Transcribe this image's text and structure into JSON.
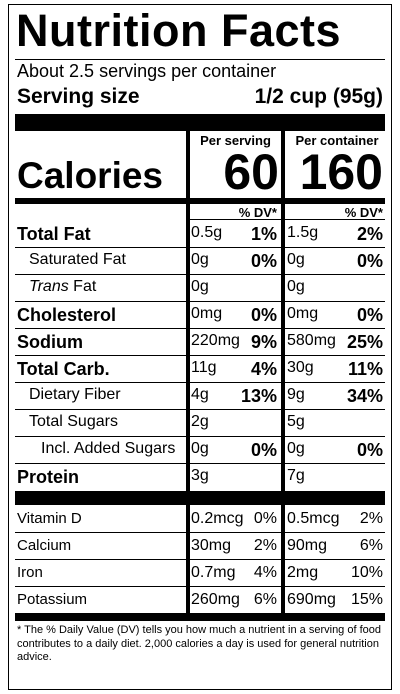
{
  "title": "Nutrition Facts",
  "servings": "About 2.5 servings per container",
  "serving_size_label": "Serving size",
  "serving_size": "1/2 cup (95g)",
  "columns": [
    "Per serving",
    "Per container"
  ],
  "calories_label": "Calories",
  "calories": [
    "60",
    "160"
  ],
  "dv_header": "% DV*",
  "nutrients": [
    {
      "name": "Total Fat",
      "bold": true,
      "indent": 0,
      "serving": [
        "0.5g",
        "1%"
      ],
      "container": [
        "1.5g",
        "2%"
      ]
    },
    {
      "name": "Saturated Fat",
      "bold": false,
      "indent": 1,
      "serving": [
        "0g",
        "0%"
      ],
      "container": [
        "0g",
        "0%"
      ]
    },
    {
      "name_italic": "Trans",
      "name": "Fat",
      "bold": false,
      "indent": 1,
      "serving": [
        "0g"
      ],
      "container": [
        "0g"
      ]
    },
    {
      "name": "Cholesterol",
      "bold": true,
      "indent": 0,
      "serving": [
        "0mg",
        "0%"
      ],
      "container": [
        "0mg",
        "0%"
      ]
    },
    {
      "name": "Sodium",
      "bold": true,
      "indent": 0,
      "serving": [
        "220mg",
        "9%"
      ],
      "container": [
        "580mg",
        "25%"
      ]
    },
    {
      "name": "Total Carb.",
      "bold": true,
      "indent": 0,
      "serving": [
        "11g",
        "4%"
      ],
      "container": [
        "30g",
        "11%"
      ]
    },
    {
      "name": "Dietary Fiber",
      "bold": false,
      "indent": 1,
      "serving": [
        "4g",
        "13%"
      ],
      "container": [
        "9g",
        "34%"
      ]
    },
    {
      "name": "Total Sugars",
      "bold": false,
      "indent": 1,
      "serving": [
        "2g"
      ],
      "container": [
        "5g"
      ]
    },
    {
      "name": "Incl. Added Sugars",
      "bold": false,
      "indent": 2,
      "serving": [
        "0g",
        "0%"
      ],
      "container": [
        "0g",
        "0%"
      ]
    },
    {
      "name": "Protein",
      "bold": true,
      "indent": 0,
      "serving": [
        "3g"
      ],
      "container": [
        "7g"
      ]
    }
  ],
  "vitamins": [
    {
      "name": "Vitamin D",
      "serving": [
        "0.2mcg",
        "0%"
      ],
      "container": [
        "0.5mcg",
        "2%"
      ]
    },
    {
      "name": "Calcium",
      "serving": [
        "30mg",
        "2%"
      ],
      "container": [
        "90mg",
        "6%"
      ]
    },
    {
      "name": "Iron",
      "serving": [
        "0.7mg",
        "4%"
      ],
      "container": [
        "2mg",
        "10%"
      ]
    },
    {
      "name": "Potassium",
      "serving": [
        "260mg",
        "6%"
      ],
      "container": [
        "690mg",
        "15%"
      ]
    }
  ],
  "footnote": "* The % Daily Value (DV) tells you how much a nutrient in a serving of food contributes to a daily diet. 2,000 calories a day is used for general nutrition advice."
}
